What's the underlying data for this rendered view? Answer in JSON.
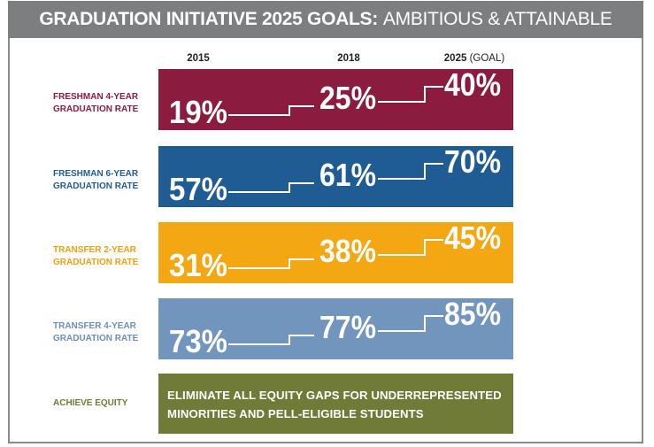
{
  "header": {
    "title_bold": "GRADUATION INITIATIVE 2025 GOALS:",
    "title_light": "AMBITIOUS & ATTAINABLE"
  },
  "chart_data": {
    "type": "table",
    "columns": [
      {
        "year": "2015",
        "note": ""
      },
      {
        "year": "2018",
        "note": ""
      },
      {
        "year": "2025",
        "note": "(GOAL)"
      }
    ],
    "rows": [
      {
        "label_line1": "FRESHMAN 4-YEAR",
        "label_line2": "GRADUATION RATE",
        "values": [
          "19%",
          "25%",
          "40%"
        ],
        "color": "#8b1c3f",
        "label_color": "#8b1c3f"
      },
      {
        "label_line1": "FRESHMAN 6-YEAR",
        "label_line2": "GRADUATION RATE",
        "values": [
          "57%",
          "61%",
          "70%"
        ],
        "color": "#1f5c94",
        "label_color": "#1f5c94"
      },
      {
        "label_line1": "TRANSFER 2-YEAR",
        "label_line2": "GRADUATION RATE",
        "values": [
          "31%",
          "38%",
          "45%"
        ],
        "color": "#f3a712",
        "label_color": "#e8a10f"
      },
      {
        "label_line1": "TRANSFER 4-YEAR",
        "label_line2": "GRADUATION RATE",
        "values": [
          "73%",
          "77%",
          "85%"
        ],
        "color": "#7295bd",
        "label_color": "#6b8fb8"
      }
    ],
    "equity": {
      "label": "ACHIEVE EQUITY",
      "line1": "ELIMINATE ALL EQUITY GAPS FOR UNDERREPRESENTED",
      "line2": "MINORITIES AND PELL-ELIGIBLE STUDENTS",
      "color": "#6f7b37",
      "label_color": "#6f7b37"
    }
  }
}
